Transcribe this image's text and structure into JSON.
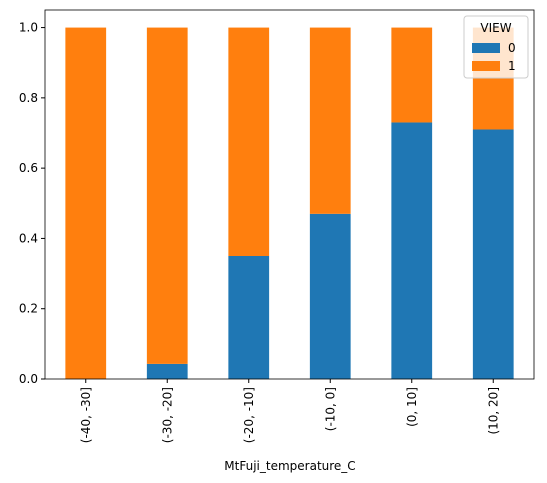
{
  "chart_data": {
    "type": "bar",
    "stacked": true,
    "x_label": "MtFuji_temperature_C",
    "categories": [
      "(-40, -30]",
      "(-30, -20]",
      "(-20, -10]",
      "(-10, 0]",
      "(0, 10]",
      "(10, 20]"
    ],
    "series": [
      {
        "name": "0",
        "color": "#1f77b4",
        "values": [
          0,
          0.043,
          0.35,
          0.47,
          0.73,
          0.71
        ]
      },
      {
        "name": "1",
        "color": "#ff7f0e",
        "values": [
          1,
          0.957,
          0.65,
          0.53,
          0.27,
          0.29
        ]
      }
    ],
    "ylim": [
      0,
      1.05
    ],
    "yticks": [
      {
        "value": 0,
        "label": "0.0"
      },
      {
        "value": 0.2,
        "label": "0.2"
      },
      {
        "value": 0.4,
        "label": "0.4"
      },
      {
        "value": 0.6,
        "label": "0.6"
      },
      {
        "value": 0.8,
        "label": "0.8"
      },
      {
        "value": 1,
        "label": "1.0"
      }
    ],
    "legend_title": "VIEW",
    "legend": "upper-right"
  }
}
